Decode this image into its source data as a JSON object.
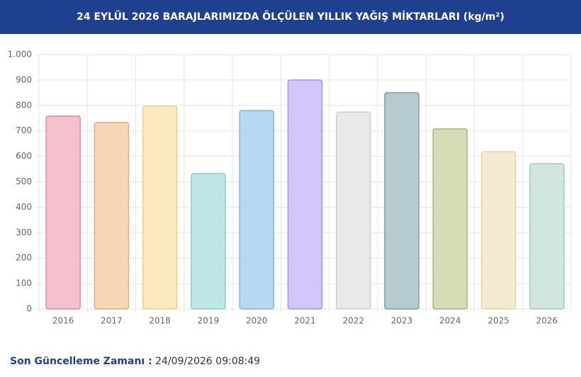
{
  "chart_data": {
    "type": "bar",
    "title": "24 EYLÜL 2026 BARAJLARIMIZDA ÖLÇÜLEN YILLIK YAĞIŞ MİKTARLARI (kg/m²)",
    "categories": [
      "2016",
      "2017",
      "2018",
      "2019",
      "2020",
      "2021",
      "2022",
      "2023",
      "2024",
      "2025",
      "2026"
    ],
    "values": [
      758,
      733,
      797,
      532,
      780,
      900,
      774,
      850,
      708,
      618,
      571
    ],
    "colors": [
      "#f5c1cc",
      "#f6d8b8",
      "#fce9bd",
      "#bfe6e5",
      "#b7d8f3",
      "#d2c6fa",
      "#e8e9eb",
      "#b6cbcf",
      "#d6dcb6",
      "#f3ead0",
      "#d1e6df"
    ],
    "border_colors": [
      "#e08a9c",
      "#e0ac7a",
      "#f0cf80",
      "#85cfcc",
      "#7db5e2",
      "#a590ee",
      "#ccced2",
      "#7b9ba0",
      "#a8b57a",
      "#e4d49f",
      "#9fcabc"
    ],
    "ylim": [
      0,
      1000
    ],
    "yticks": [
      0,
      100,
      200,
      300,
      400,
      500,
      600,
      700,
      800,
      900,
      {
        "value": 1000,
        "label": "1.000"
      }
    ],
    "grid": true
  },
  "footer": {
    "label": "Son Güncelleme Zamanı :",
    "value": "24/09/2026 09:08:49"
  }
}
